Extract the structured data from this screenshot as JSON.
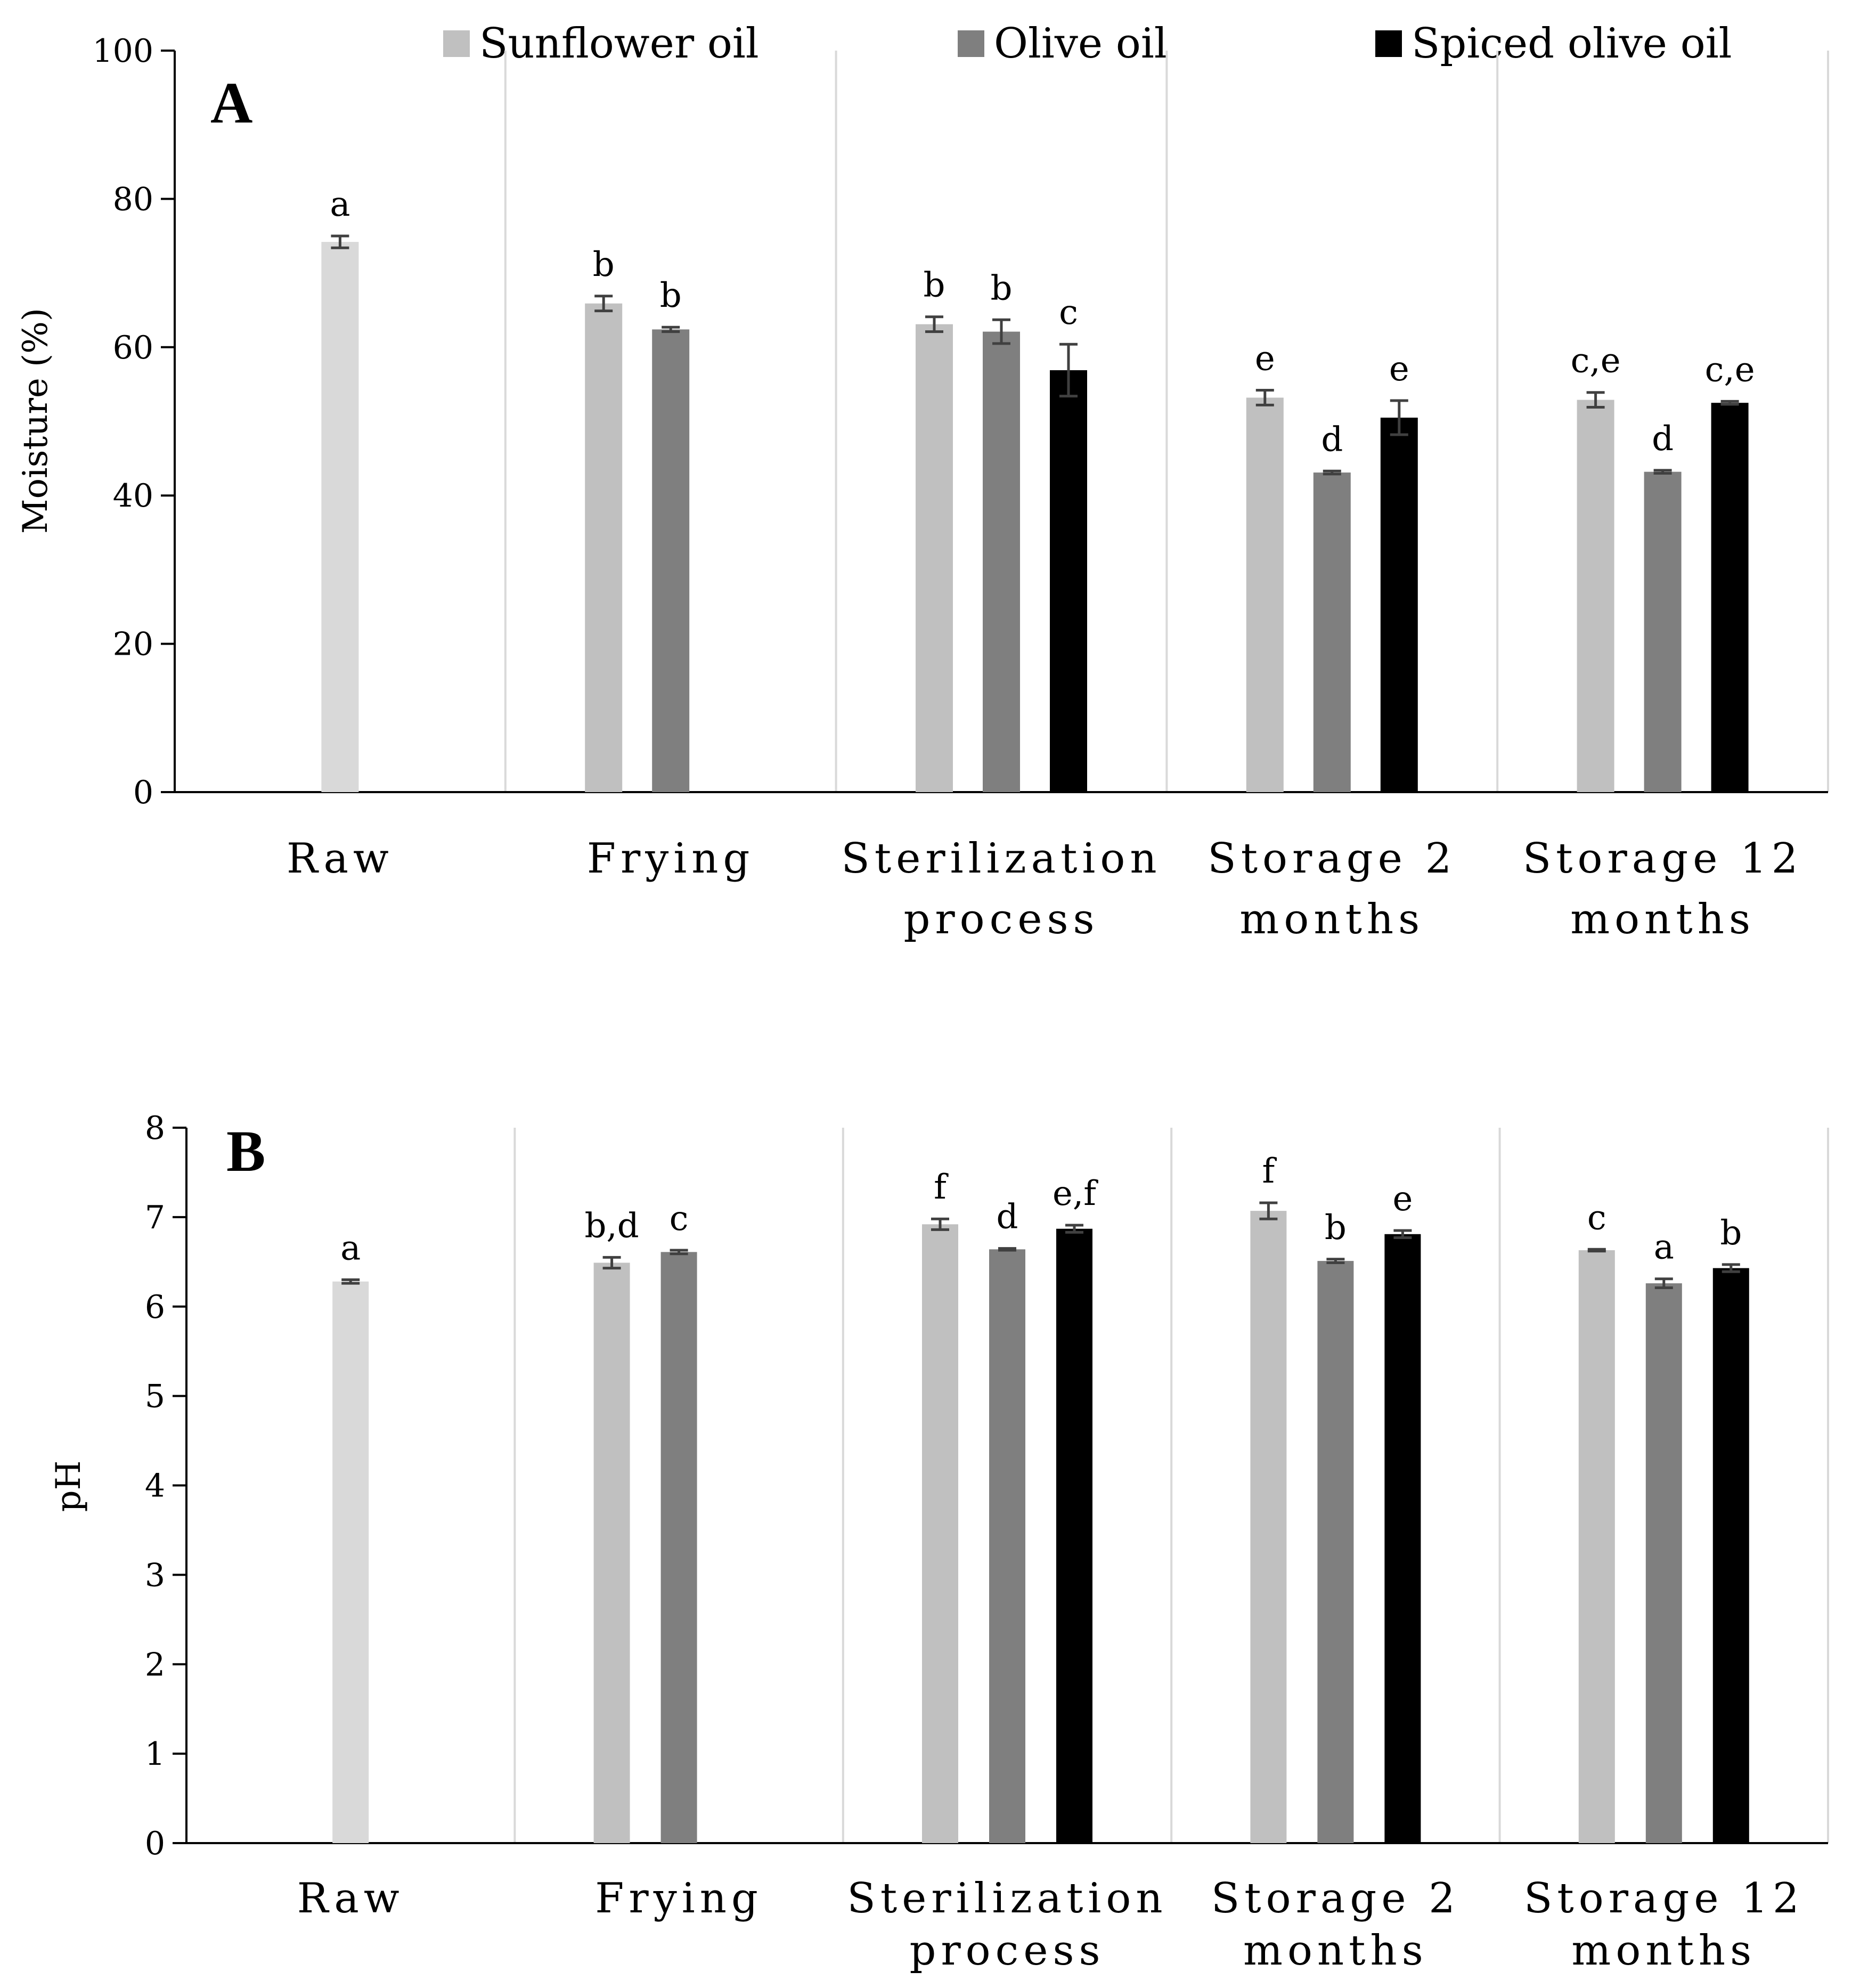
{
  "legend": [
    {
      "label": "Sunflower oil",
      "color": "#c0c0c0"
    },
    {
      "label": "Olive oil",
      "color": "#7f7f7f"
    },
    {
      "label": "Spiced olive oil",
      "color": "#000000"
    }
  ],
  "chart_data": [
    {
      "type": "bar",
      "panel_label": "A",
      "ylabel": "Moisture (%)",
      "ylim": [
        0,
        100
      ],
      "yticks": [
        0,
        20,
        40,
        60,
        80,
        100
      ],
      "categories": [
        [
          "Raw"
        ],
        [
          "Frying"
        ],
        [
          "Sterilization",
          "process"
        ],
        [
          "Storage 2",
          "months"
        ],
        [
          "Storage 12",
          "months"
        ]
      ],
      "raw_color": "#d9d9d9",
      "series": [
        {
          "name": "Sunflower oil",
          "color": "#c0c0c0",
          "values": [
            74.2,
            65.9,
            63.1,
            53.2,
            52.9
          ],
          "errors": [
            0.8,
            1.0,
            1.0,
            1.0,
            1.0
          ],
          "letters": [
            "a",
            "b",
            "b",
            "e",
            "c,e"
          ]
        },
        {
          "name": "Olive oil",
          "color": "#7f7f7f",
          "values": [
            null,
            62.4,
            62.1,
            43.1,
            43.2
          ],
          "errors": [
            null,
            0.3,
            1.6,
            0.2,
            0.2
          ],
          "letters": [
            null,
            "b",
            "b",
            "d",
            "d"
          ]
        },
        {
          "name": "Spiced olive oil",
          "color": "#000000",
          "values": [
            null,
            null,
            56.9,
            50.5,
            52.5
          ],
          "errors": [
            null,
            null,
            3.5,
            2.3,
            0.2
          ],
          "letters": [
            null,
            null,
            "c",
            "e",
            "c,e"
          ]
        }
      ]
    },
    {
      "type": "bar",
      "panel_label": "B",
      "ylabel": "pH",
      "ylim": [
        0,
        8
      ],
      "yticks": [
        0,
        1,
        2,
        3,
        4,
        5,
        6,
        7,
        8
      ],
      "categories": [
        [
          "Raw"
        ],
        [
          "Frying"
        ],
        [
          "Sterilization",
          "process"
        ],
        [
          "Storage 2",
          "months"
        ],
        [
          "Storage 12",
          "months"
        ]
      ],
      "raw_color": "#d9d9d9",
      "series": [
        {
          "name": "Sunflower oil",
          "color": "#c0c0c0",
          "values": [
            6.28,
            6.49,
            6.92,
            7.07,
            6.63
          ],
          "errors": [
            0.02,
            0.06,
            0.06,
            0.09,
            0.01
          ],
          "letters": [
            "a",
            "b,d",
            "f",
            "f",
            "c"
          ]
        },
        {
          "name": "Olive oil",
          "color": "#7f7f7f",
          "values": [
            null,
            6.61,
            6.64,
            6.51,
            6.26
          ],
          "errors": [
            null,
            0.02,
            0.01,
            0.02,
            0.05
          ],
          "letters": [
            null,
            "c",
            "d",
            "b",
            "a"
          ]
        },
        {
          "name": "Spiced olive oil",
          "color": "#000000",
          "values": [
            null,
            null,
            6.87,
            6.81,
            6.43
          ],
          "errors": [
            null,
            null,
            0.04,
            0.04,
            0.04
          ],
          "letters": [
            null,
            null,
            "e,f",
            "e",
            "b"
          ]
        }
      ]
    }
  ]
}
